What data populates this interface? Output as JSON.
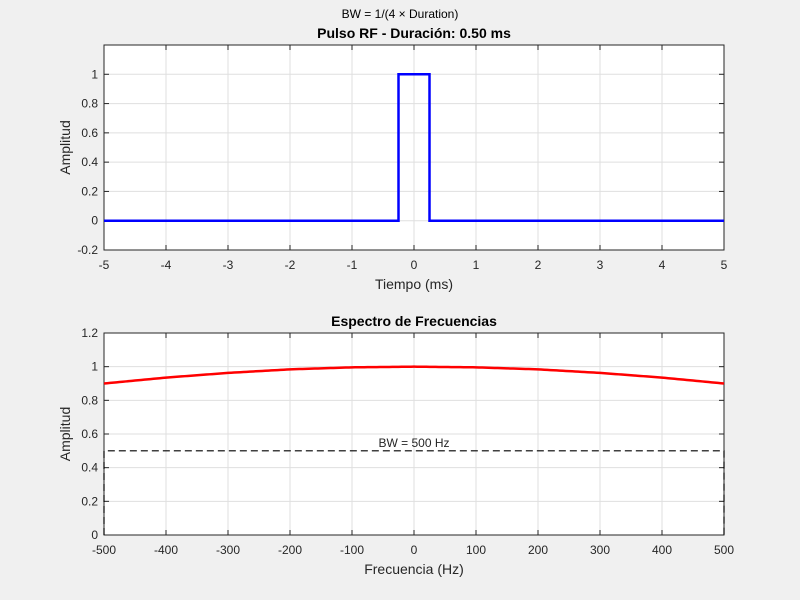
{
  "figure": {
    "suptitle": "BW = 1/(4 × Duration)",
    "background": "#f0f0f0"
  },
  "chart_data": [
    {
      "type": "line",
      "title": "Pulso RF - Duración: 0.50 ms",
      "xlabel": "Tiempo (ms)",
      "ylabel": "Amplitud",
      "xlim": [
        -5,
        5
      ],
      "ylim": [
        -0.2,
        1.2
      ],
      "xticks": [
        -5,
        -4,
        -3,
        -2,
        -1,
        0,
        1,
        2,
        3,
        4,
        5
      ],
      "yticks": [
        -0.2,
        0,
        0.2,
        0.4,
        0.6,
        0.8,
        1
      ],
      "grid": true,
      "series": [
        {
          "color": "#0000ff",
          "x": [
            -5,
            -0.25,
            -0.25,
            0.25,
            0.25,
            5
          ],
          "y": [
            0,
            0,
            1,
            1,
            0,
            0
          ]
        }
      ]
    },
    {
      "type": "line",
      "title": "Espectro de Frecuencias",
      "xlabel": "Frecuencia (Hz)",
      "ylabel": "Amplitud",
      "xlim": [
        -500,
        500
      ],
      "ylim": [
        0,
        1.2
      ],
      "xticks": [
        -500,
        -400,
        -300,
        -200,
        -100,
        0,
        100,
        200,
        300,
        400,
        500
      ],
      "yticks": [
        0,
        0.2,
        0.4,
        0.6,
        0.8,
        1,
        1.2
      ],
      "grid": true,
      "series": [
        {
          "color": "#ff0000",
          "x": [
            -500,
            -400,
            -300,
            -200,
            -100,
            0,
            100,
            200,
            300,
            400,
            500
          ],
          "y": [
            0.9,
            0.935,
            0.963,
            0.984,
            0.996,
            1.0,
            0.996,
            0.984,
            0.963,
            0.935,
            0.9
          ]
        }
      ],
      "bandwidth_box": {
        "label": "BW = 500 Hz",
        "color": "#000000",
        "x": [
          -500,
          500
        ],
        "level": 0.5
      }
    }
  ]
}
